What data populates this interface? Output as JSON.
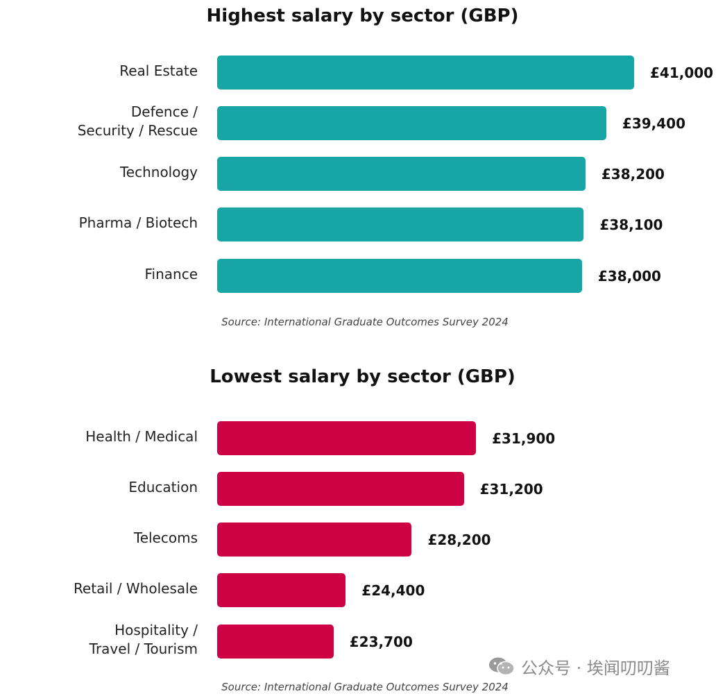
{
  "chart_data": [
    {
      "type": "bar",
      "orientation": "horizontal",
      "title": "Highest salary by sector (GBP)",
      "categories": [
        [
          "Real Estate"
        ],
        [
          "Defence /",
          "Security / Rescue"
        ],
        [
          "Technology"
        ],
        [
          "Pharma / Biotech"
        ],
        [
          "Finance"
        ]
      ],
      "values": [
        41000,
        39400,
        38200,
        38100,
        38000
      ],
      "value_labels": [
        "£41,000",
        "£39,400",
        "£38,200",
        "£38,100",
        "£38,000"
      ],
      "color": "#17a5a5",
      "source": "Source: International Graduate Outcomes Survey 2024"
    },
    {
      "type": "bar",
      "orientation": "horizontal",
      "title": "Lowest salary by sector (GBP)",
      "categories": [
        [
          "Health / Medical"
        ],
        [
          "Education"
        ],
        [
          "Telecoms"
        ],
        [
          "Retail / Wholesale"
        ],
        [
          "Hospitality /",
          "Travel / Tourism"
        ]
      ],
      "values": [
        31900,
        31200,
        28200,
        24400,
        23700
      ],
      "value_labels": [
        "£31,900",
        "£31,200",
        "£28,200",
        "£24,400",
        "£23,700"
      ],
      "color": "#cc0245",
      "source": "Source: International Graduate Outcomes Survey 2024"
    }
  ],
  "watermark": {
    "text": "公众号 · 埃闻叨叨酱",
    "icon": "wechat-icon"
  }
}
